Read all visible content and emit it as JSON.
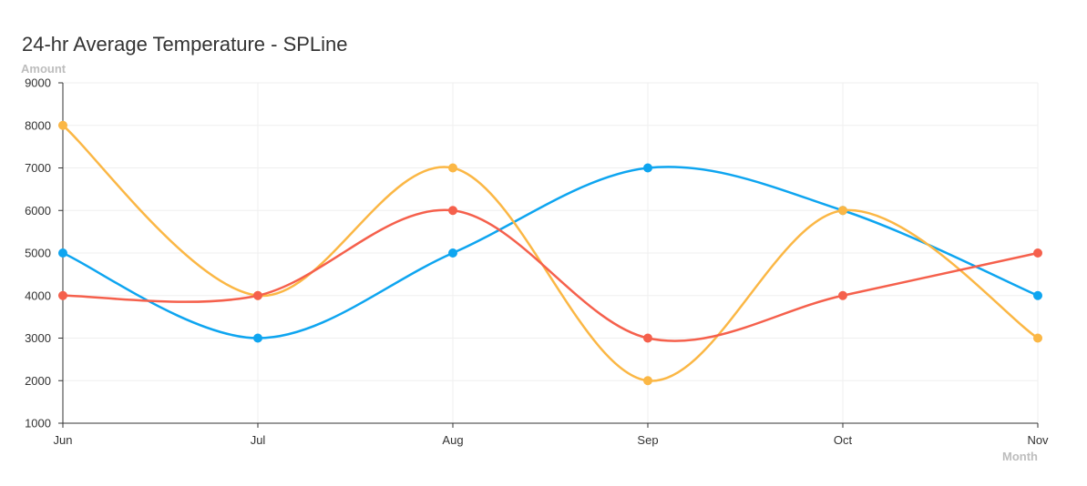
{
  "chart_data": {
    "type": "line",
    "title": "24-hr Average Temperature - SPLine",
    "xlabel": "Month",
    "ylabel": "Amount",
    "categories": [
      "Jun",
      "Jul",
      "Aug",
      "Sep",
      "Oct",
      "Nov"
    ],
    "ylim": [
      1000,
      9000
    ],
    "yticks": [
      1000,
      2000,
      3000,
      4000,
      5000,
      6000,
      7000,
      8000,
      9000
    ],
    "grid": true,
    "smooth": true,
    "series": [
      {
        "color": "#0ea5f0",
        "values": [
          5000,
          3000,
          5000,
          7000,
          6000,
          4000
        ]
      },
      {
        "color": "#fbb745",
        "values": [
          8000,
          4000,
          7000,
          2000,
          6000,
          3000
        ]
      },
      {
        "color": "#f5604c",
        "values": [
          4000,
          4000,
          6000,
          3000,
          4000,
          5000
        ]
      }
    ]
  }
}
